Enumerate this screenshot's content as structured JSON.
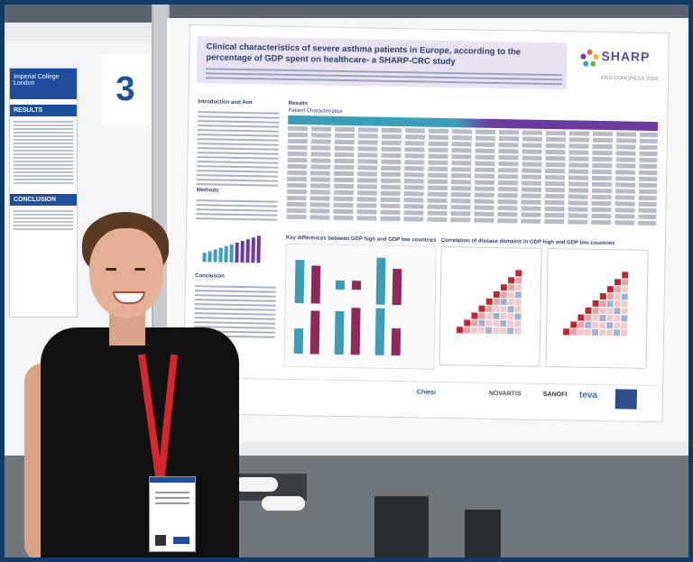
{
  "board": {
    "number": "3"
  },
  "left_poster": {
    "institution": "Imperial College London",
    "sections": [
      "RESULTS",
      "CONCLUSION"
    ]
  },
  "poster": {
    "title": "Clinical characteristics of severe asthma patients in Europe, according to the percentage of GDP spent on healthcare- a SHARP-CRC study",
    "logo": "SHARP",
    "logo_sub": "ERS CONGRESS 2024",
    "sections": {
      "intro": "Introduction and Aim",
      "methods": "Methods",
      "conclusion": "Conclusion",
      "results": "Results",
      "patient_characteristics": "Patient Characteristics",
      "key_differences": "Key differences between GDP high and GDP low countries",
      "correlation": "Correlation of disease domains in GDP high and GDP low countries"
    },
    "sponsors": [
      "Chiesi",
      "NOVARTIS",
      "SANOFI",
      "teva"
    ]
  },
  "colors": {
    "teal": "#3c9db6",
    "purple": "#6d3aa0",
    "lanyard_red": "#d8262e",
    "frame_blue": "#123a66"
  }
}
